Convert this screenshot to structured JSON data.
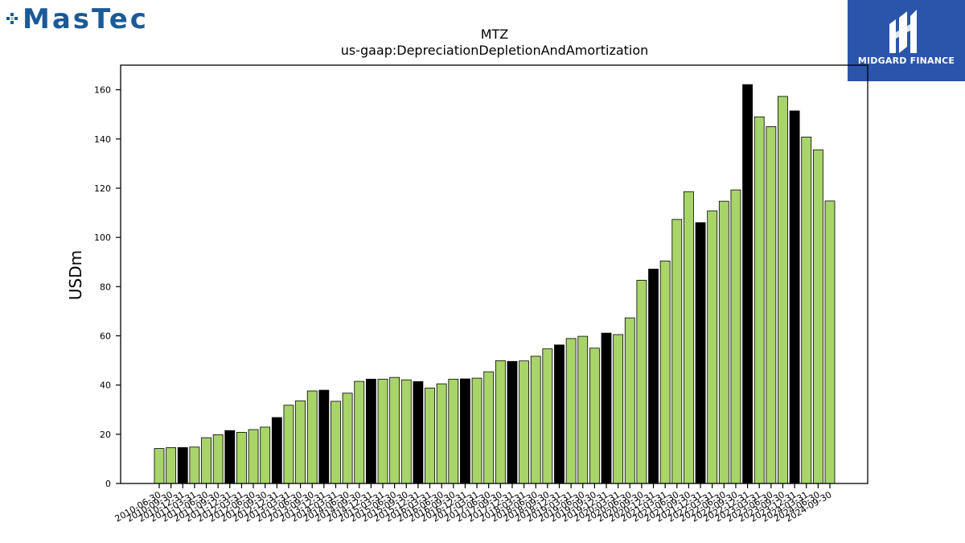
{
  "brand_left": {
    "text": "MasTec",
    "color": "#1a5a96"
  },
  "brand_right": {
    "text": "MIDGARD FINANCE",
    "bg_color": "#2b55ab"
  },
  "chart_data": {
    "type": "bar",
    "title": "MTZ",
    "subtitle": "us-gaap:DepreciationDepletionAndAmortization",
    "ylabel": "USDm",
    "xlabel": "",
    "ylim": [
      0,
      170
    ],
    "yticks": [
      0,
      20,
      40,
      60,
      80,
      100,
      120,
      140,
      160
    ],
    "grid": false,
    "colors": {
      "quarter": "#a8d46a",
      "annual": "#000000",
      "edge": "#000000"
    },
    "categories": [
      "2010-06-30",
      "2010-09-30",
      "2010-12-31",
      "2011-03-31",
      "2011-06-30",
      "2011-09-30",
      "2011-12-31",
      "2012-03-31",
      "2012-06-30",
      "2012-09-30",
      "2012-12-31",
      "2013-03-31",
      "2013-06-30",
      "2013-09-30",
      "2013-12-31",
      "2014-03-31",
      "2014-06-30",
      "2014-09-30",
      "2014-12-31",
      "2015-03-31",
      "2015-06-30",
      "2015-09-30",
      "2015-12-31",
      "2016-03-31",
      "2016-06-30",
      "2016-09-30",
      "2016-12-31",
      "2017-03-31",
      "2017-06-30",
      "2017-09-30",
      "2017-12-31",
      "2018-03-31",
      "2018-06-30",
      "2018-09-30",
      "2018-12-31",
      "2019-03-31",
      "2019-06-30",
      "2019-09-30",
      "2019-12-31",
      "2020-03-31",
      "2020-06-30",
      "2020-09-30",
      "2020-12-31",
      "2021-03-31",
      "2021-06-30",
      "2021-09-30",
      "2021-12-31",
      "2022-03-31",
      "2022-06-30",
      "2022-09-30",
      "2022-12-31",
      "2023-03-31",
      "2023-06-30",
      "2023-09-30",
      "2023-12-31",
      "2024-03-31",
      "2024-06-30",
      "2024-09-30"
    ],
    "values": [
      14.2,
      14.6,
      14.6,
      14.8,
      18.6,
      19.8,
      21.5,
      20.8,
      21.9,
      22.9,
      26.8,
      31.8,
      33.6,
      37.6,
      37.9,
      33.4,
      36.7,
      41.5,
      42.4,
      42.4,
      43.1,
      42.1,
      41.4,
      38.8,
      40.5,
      42.4,
      42.5,
      42.8,
      45.4,
      49.9,
      49.6,
      49.8,
      51.7,
      54.7,
      56.3,
      58.9,
      59.8,
      55.0,
      61.1,
      60.5,
      67.3,
      82.6,
      87.1,
      90.4,
      107.3,
      118.6,
      106.0,
      110.8,
      114.7,
      119.3,
      162.1,
      149.0,
      145.0,
      157.3,
      151.4,
      140.8,
      135.6,
      114.8
    ],
    "annual_flags": [
      false,
      false,
      true,
      false,
      false,
      false,
      true,
      false,
      false,
      false,
      true,
      false,
      false,
      false,
      true,
      false,
      false,
      false,
      true,
      false,
      false,
      false,
      true,
      false,
      false,
      false,
      true,
      false,
      false,
      false,
      true,
      false,
      false,
      false,
      true,
      false,
      false,
      false,
      true,
      false,
      false,
      false,
      true,
      false,
      false,
      false,
      true,
      false,
      false,
      false,
      true,
      false,
      false,
      false,
      true,
      false,
      false,
      false
    ]
  }
}
